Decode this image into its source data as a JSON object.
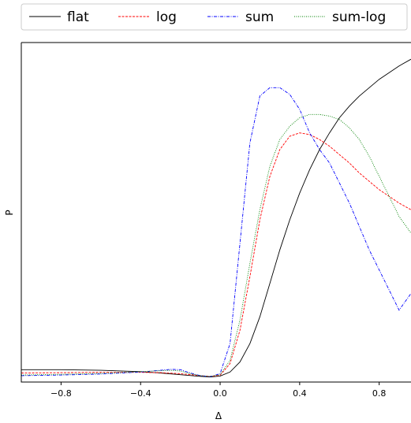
{
  "chart_data": {
    "type": "line",
    "xlabel": "Δ",
    "ylabel": "P",
    "xlim": [
      -1.0,
      0.96
    ],
    "ylim": [
      -0.015,
      1.0
    ],
    "xticks": [
      {
        "value": -0.8,
        "label": "−0.8"
      },
      {
        "value": -0.4,
        "label": "−0.4"
      },
      {
        "value": 0.0,
        "label": "0.0"
      },
      {
        "value": 0.4,
        "label": "0.4"
      },
      {
        "value": 0.8,
        "label": "0.8"
      }
    ],
    "grid": false,
    "legend_position": "top (outside, above plot)",
    "series": [
      {
        "name": "flat",
        "color": "#000000",
        "style": "solid",
        "x": [
          -1.0,
          -0.8,
          -0.6,
          -0.4,
          -0.3,
          -0.2,
          -0.1,
          -0.05,
          0.0,
          0.05,
          0.1,
          0.15,
          0.2,
          0.25,
          0.3,
          0.35,
          0.4,
          0.45,
          0.5,
          0.55,
          0.6,
          0.65,
          0.7,
          0.75,
          0.8,
          0.85,
          0.9,
          0.96
        ],
        "y": [
          0.022,
          0.022,
          0.02,
          0.016,
          0.012,
          0.007,
          0.002,
          0.0,
          0.003,
          0.015,
          0.045,
          0.1,
          0.18,
          0.28,
          0.38,
          0.47,
          0.55,
          0.62,
          0.68,
          0.73,
          0.775,
          0.81,
          0.84,
          0.865,
          0.89,
          0.91,
          0.93,
          0.95
        ]
      },
      {
        "name": "log",
        "color": "#ff0000",
        "style": "dashed",
        "x": [
          -1.0,
          -0.8,
          -0.6,
          -0.4,
          -0.3,
          -0.2,
          -0.1,
          -0.05,
          0.0,
          0.05,
          0.1,
          0.15,
          0.2,
          0.25,
          0.3,
          0.35,
          0.4,
          0.45,
          0.5,
          0.55,
          0.6,
          0.65,
          0.7,
          0.75,
          0.8,
          0.85,
          0.9,
          0.96
        ],
        "y": [
          0.012,
          0.013,
          0.014,
          0.014,
          0.013,
          0.01,
          0.004,
          0.002,
          0.005,
          0.04,
          0.14,
          0.3,
          0.47,
          0.6,
          0.68,
          0.72,
          0.73,
          0.725,
          0.71,
          0.69,
          0.665,
          0.64,
          0.61,
          0.585,
          0.56,
          0.54,
          0.52,
          0.5
        ]
      },
      {
        "name": "sum",
        "color": "#0000ff",
        "style": "dashdot",
        "x": [
          -1.0,
          -0.8,
          -0.6,
          -0.4,
          -0.3,
          -0.25,
          -0.2,
          -0.15,
          -0.1,
          -0.05,
          0.0,
          0.05,
          0.1,
          0.15,
          0.2,
          0.25,
          0.3,
          0.35,
          0.4,
          0.45,
          0.5,
          0.55,
          0.6,
          0.65,
          0.7,
          0.75,
          0.8,
          0.85,
          0.9,
          0.96
        ],
        "y": [
          0.004,
          0.006,
          0.009,
          0.015,
          0.02,
          0.023,
          0.022,
          0.012,
          0.004,
          0.001,
          0.01,
          0.1,
          0.4,
          0.7,
          0.84,
          0.865,
          0.865,
          0.845,
          0.8,
          0.73,
          0.68,
          0.64,
          0.58,
          0.52,
          0.45,
          0.38,
          0.32,
          0.26,
          0.2,
          0.25
        ]
      },
      {
        "name": "sum-log",
        "color": "#008000",
        "style": "dotted",
        "x": [
          -1.0,
          -0.8,
          -0.6,
          -0.4,
          -0.3,
          -0.25,
          -0.2,
          -0.15,
          -0.1,
          -0.05,
          0.0,
          0.05,
          0.1,
          0.15,
          0.2,
          0.25,
          0.3,
          0.35,
          0.4,
          0.45,
          0.5,
          0.55,
          0.6,
          0.65,
          0.7,
          0.75,
          0.8,
          0.85,
          0.9,
          0.96
        ],
        "y": [
          0.006,
          0.008,
          0.011,
          0.016,
          0.019,
          0.02,
          0.018,
          0.01,
          0.004,
          0.002,
          0.007,
          0.05,
          0.17,
          0.34,
          0.5,
          0.63,
          0.71,
          0.75,
          0.775,
          0.785,
          0.785,
          0.78,
          0.77,
          0.745,
          0.71,
          0.66,
          0.6,
          0.54,
          0.48,
          0.43
        ]
      }
    ]
  }
}
